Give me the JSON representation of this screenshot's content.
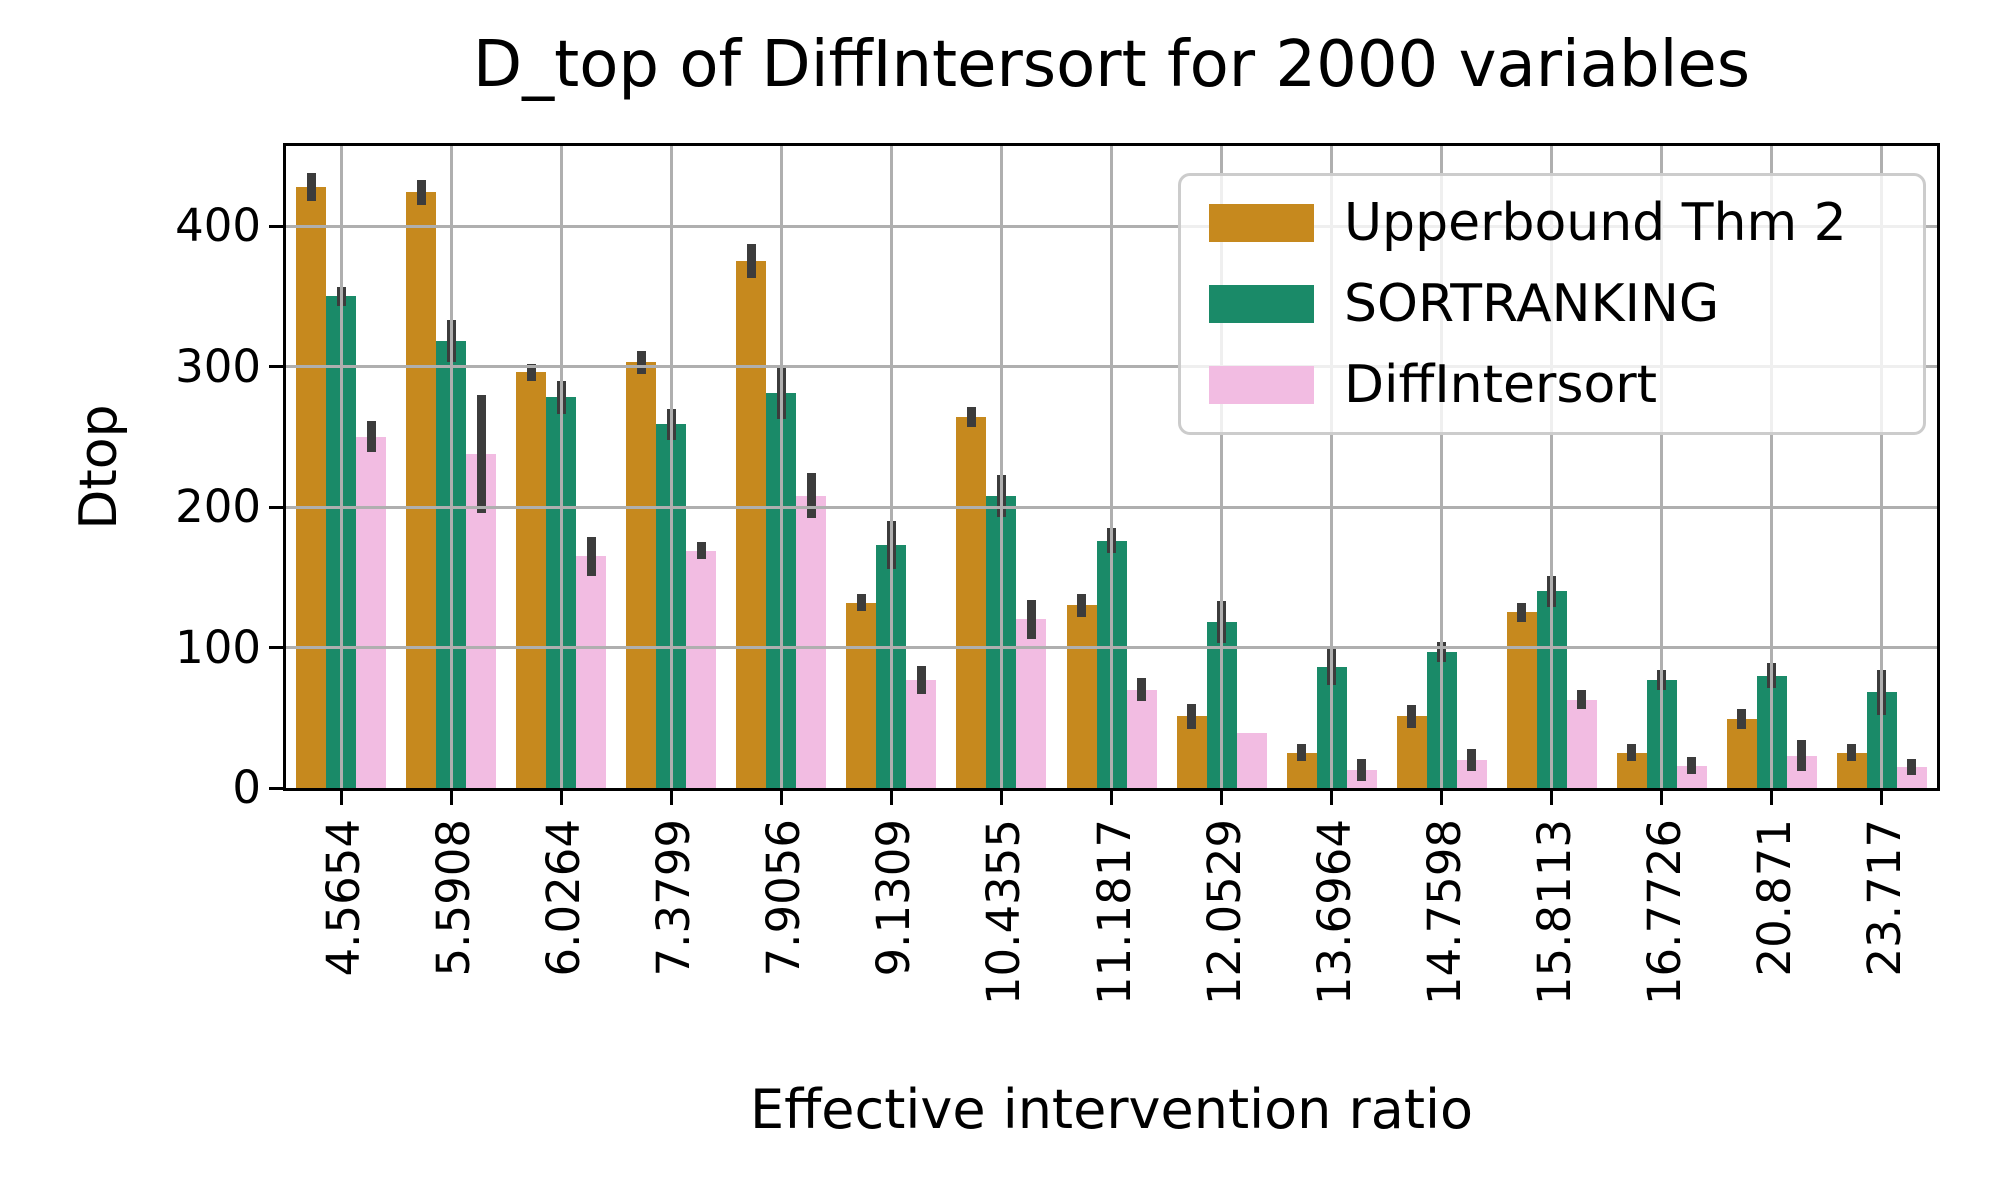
{
  "figure": {
    "title": "D_top of DiffIntersort for 2000 variables"
  },
  "chart_data": {
    "type": "bar",
    "title": "D_top of DiffIntersort for 2000 variables",
    "xlabel": "Effective intervention ratio",
    "ylabel": "Dtop",
    "ylim": [
      0,
      457
    ],
    "yticks": [
      0,
      100,
      200,
      300,
      400
    ],
    "grid": "both axes, gray, drawn above bars",
    "legend_position": "upper right",
    "categories": [
      "4.5654",
      "5.5908",
      "6.0264",
      "7.3799",
      "7.9056",
      "9.1309",
      "10.4355",
      "11.1817",
      "12.0529",
      "13.6964",
      "14.7598",
      "15.8113",
      "16.7726",
      "20.871",
      "23.717"
    ],
    "series": [
      {
        "name": "Upperbound Thm 2",
        "color": "#C6891E",
        "values": [
          428,
          424,
          296,
          303,
          375,
          132,
          264,
          130,
          51,
          25,
          51,
          125,
          25,
          49,
          25
        ],
        "errors": [
          10,
          9,
          6,
          8,
          12,
          6,
          7,
          8,
          9,
          6,
          8,
          7,
          6,
          7,
          6
        ]
      },
      {
        "name": "SORTRANKING",
        "color": "#1A8A68",
        "values": [
          350,
          318,
          278,
          259,
          281,
          173,
          208,
          176,
          118,
          86,
          97,
          140,
          77,
          80,
          68
        ],
        "errors": [
          7,
          15,
          12,
          11,
          18,
          17,
          15,
          9,
          15,
          13,
          7,
          11,
          7,
          9,
          16
        ]
      },
      {
        "name": "DiffIntersort",
        "color": "#F2BCE2",
        "values": [
          250,
          238,
          165,
          169,
          208,
          77,
          120,
          70,
          39,
          13,
          20,
          63,
          16,
          23,
          15
        ],
        "errors": [
          11,
          42,
          14,
          6,
          16,
          10,
          14,
          8,
          0,
          8,
          8,
          7,
          6,
          11,
          6
        ]
      }
    ],
    "error_bar_color": "#3C3C3C",
    "colors": {
      "grid": "#AFAFAF",
      "spine": "#000000",
      "background": "#FFFFFF",
      "text": "#000000",
      "legend_border": "#CCCCCC"
    }
  }
}
